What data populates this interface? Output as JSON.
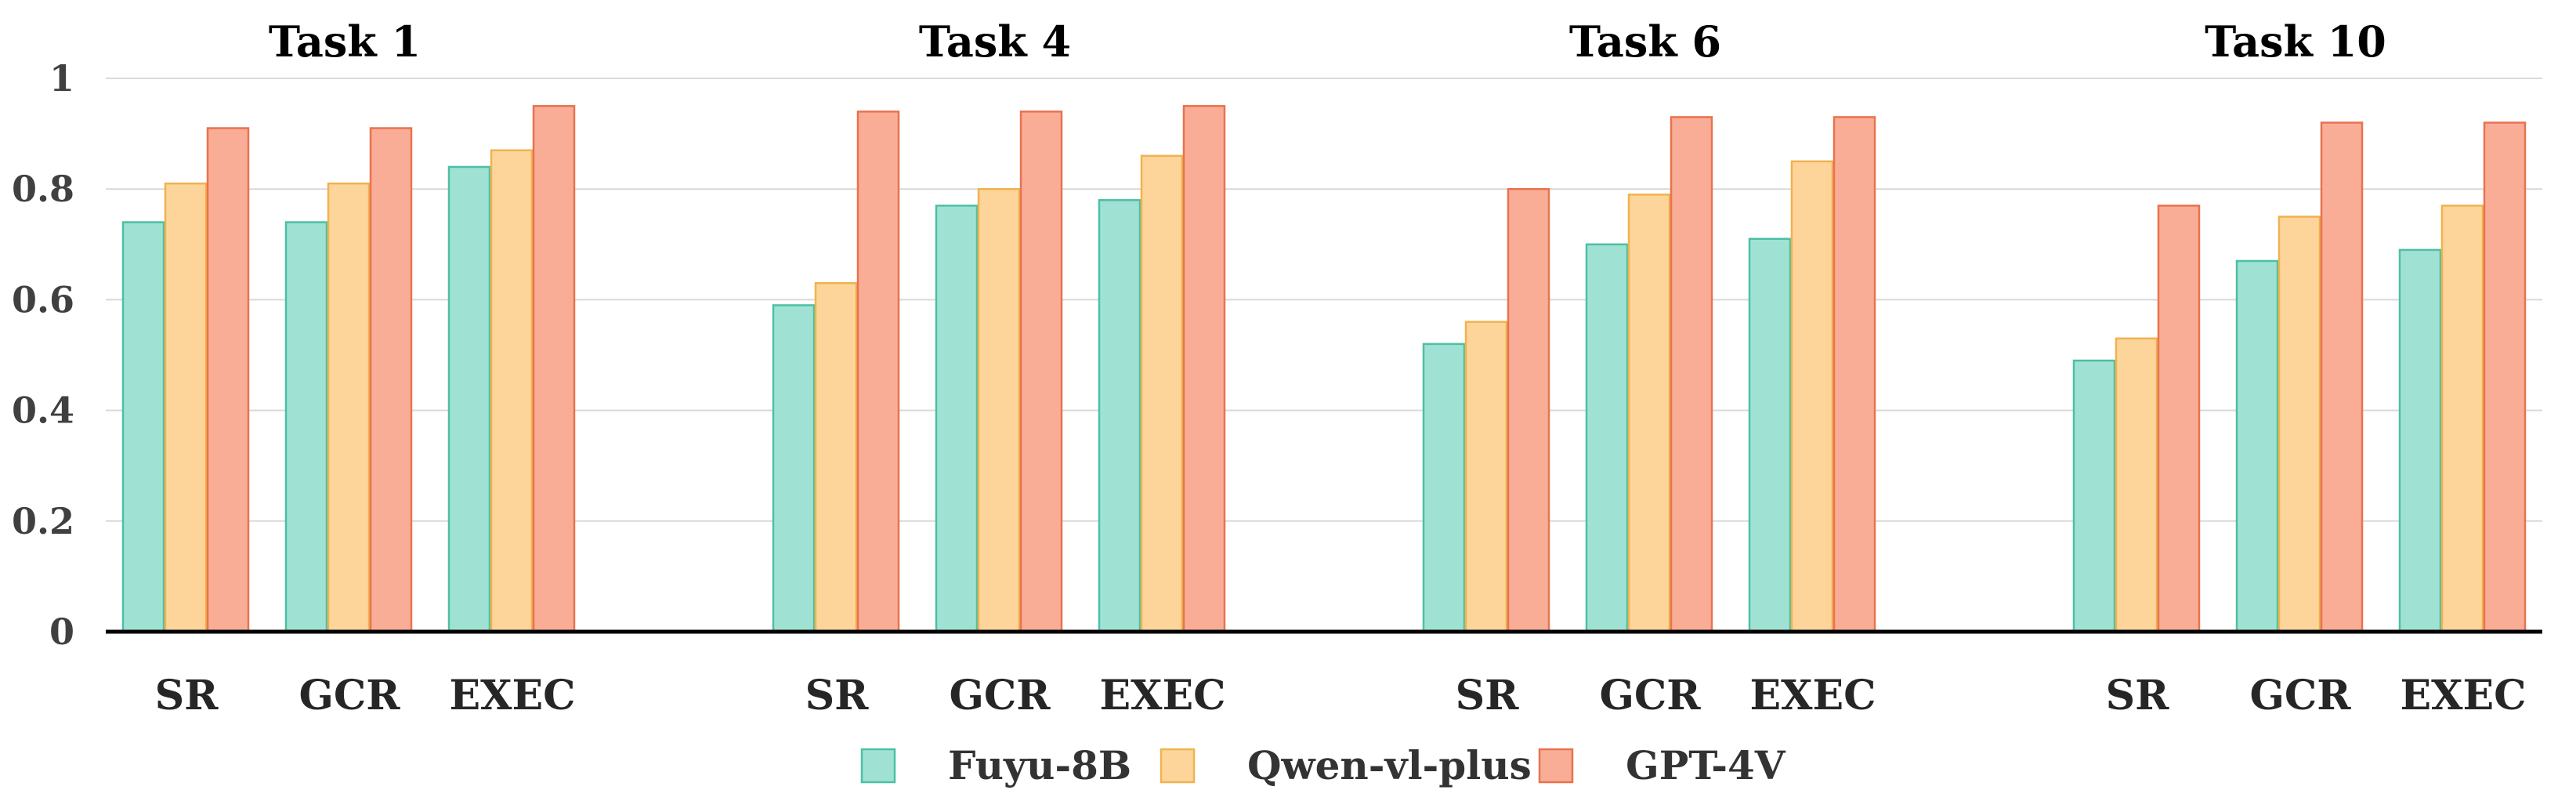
{
  "chart_data": {
    "type": "bar",
    "groups": [
      "Task 1",
      "Task 4",
      "Task 6",
      "Task 10"
    ],
    "categories": [
      "SR",
      "GCR",
      "EXEC"
    ],
    "series": [
      {
        "name": "Fuyu-8B",
        "color": "#9fe2d3",
        "edge": "#4dbfa4",
        "values": [
          [
            0.74,
            0.74,
            0.84
          ],
          [
            0.59,
            0.77,
            0.78
          ],
          [
            0.52,
            0.7,
            0.71
          ],
          [
            0.49,
            0.67,
            0.69
          ]
        ]
      },
      {
        "name": "Qwen-vl-plus",
        "color": "#fdd59b",
        "edge": "#f0b24f",
        "values": [
          [
            0.81,
            0.81,
            0.87
          ],
          [
            0.63,
            0.8,
            0.86
          ],
          [
            0.56,
            0.79,
            0.85
          ],
          [
            0.53,
            0.75,
            0.77
          ]
        ]
      },
      {
        "name": "GPT-4V",
        "color": "#f9ad96",
        "edge": "#e8734f",
        "values": [
          [
            0.91,
            0.91,
            0.95
          ],
          [
            0.94,
            0.94,
            0.95
          ],
          [
            0.8,
            0.93,
            0.93
          ],
          [
            0.77,
            0.92,
            0.92
          ]
        ]
      }
    ],
    "ylim": [
      0,
      1
    ],
    "yticks": [
      0,
      0.2,
      0.4,
      0.6,
      0.8,
      1
    ],
    "ytick_labels": [
      "0",
      "0.2",
      "0.4",
      "0.6",
      "0.8",
      "1"
    ],
    "grid": true,
    "legend_position": "bottom-center",
    "xlabel": "",
    "ylabel": ""
  }
}
